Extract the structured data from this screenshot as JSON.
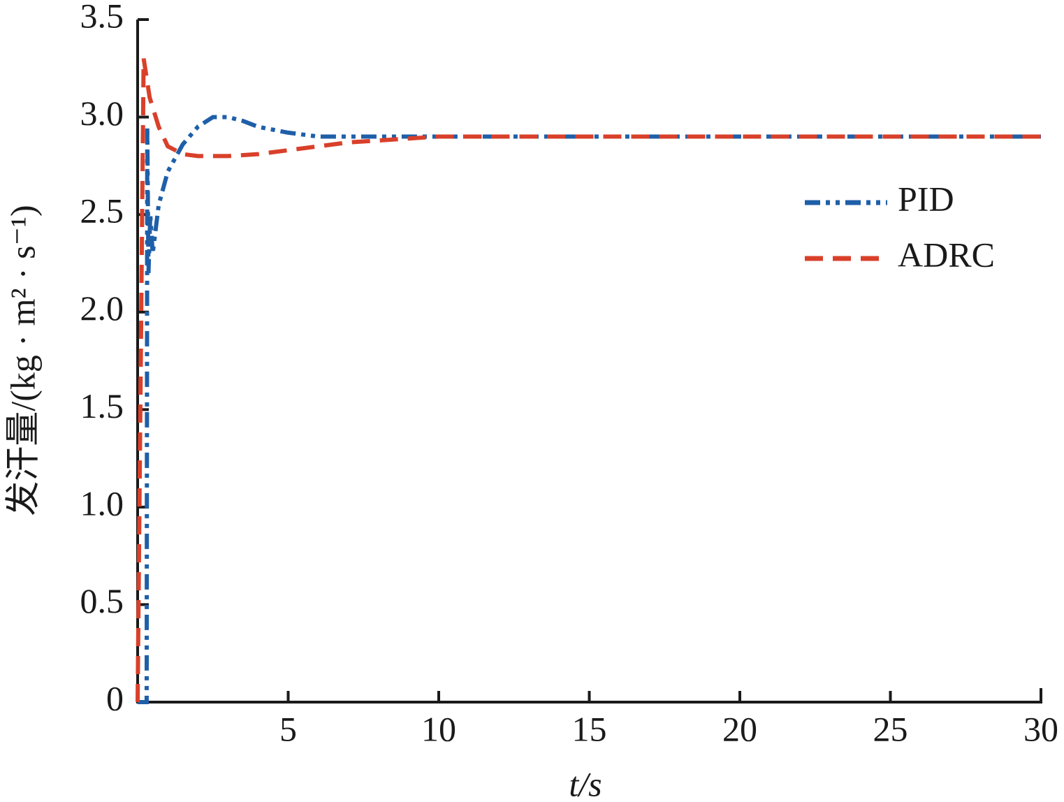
{
  "chart_data": {
    "type": "line",
    "xlabel": "t/s",
    "ylabel": "发汗量/(kg · m² · s⁻¹)",
    "xlim": [
      0,
      30
    ],
    "xticks": [
      5,
      10,
      15,
      20,
      25,
      30
    ],
    "ylim": [
      0,
      3.5
    ],
    "yticks": [
      0,
      0.5,
      {
        "value": 1,
        "label": "1.0"
      },
      1.5,
      {
        "value": 2,
        "label": "2.0"
      },
      2.5,
      {
        "value": 3,
        "label": "3.0"
      },
      3.5
    ],
    "legend": "right",
    "series": [
      {
        "name": "PID",
        "color": "#1f5fa8",
        "dash": "dashdotdot",
        "x": [
          0,
          0.3,
          0.32,
          0.36,
          0.42,
          0.5,
          0.7,
          1,
          1.5,
          2,
          2.5,
          3,
          3.5,
          4,
          5,
          6,
          8,
          10,
          15,
          20,
          30
        ],
        "values": [
          0,
          0,
          2.95,
          2.2,
          2.5,
          2.3,
          2.55,
          2.72,
          2.86,
          2.95,
          3.0,
          3.0,
          2.98,
          2.95,
          2.92,
          2.9,
          2.9,
          2.9,
          2.9,
          2.9,
          2.9
        ]
      },
      {
        "name": "ADRC",
        "color": "#d9402a",
        "dash": "dashed",
        "x": [
          0,
          0.15,
          0.2,
          0.4,
          0.7,
          1,
          1.5,
          2,
          3,
          4,
          5,
          6,
          7,
          8,
          10,
          15,
          20,
          30
        ],
        "values": [
          0,
          2.5,
          3.3,
          3.1,
          2.95,
          2.85,
          2.81,
          2.8,
          2.8,
          2.81,
          2.83,
          2.85,
          2.87,
          2.88,
          2.9,
          2.9,
          2.9,
          2.9
        ]
      }
    ]
  }
}
